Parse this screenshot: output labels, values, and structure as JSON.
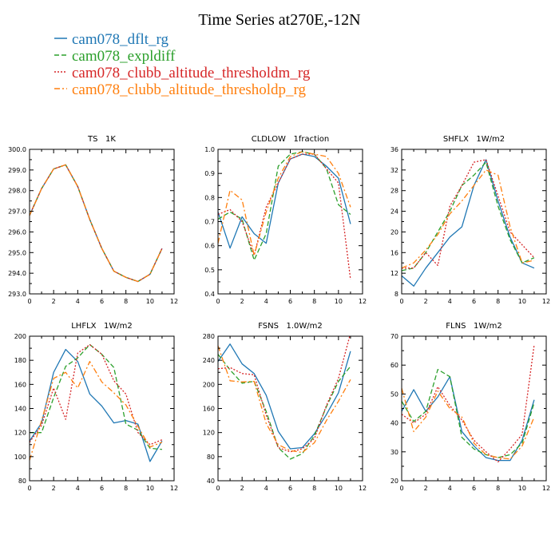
{
  "title": "Time Series at270E,-12N",
  "legend": [
    {
      "label": "cam078_dflt_rg",
      "color": "#1f77b4",
      "dash": "solid"
    },
    {
      "label": "cam078_expldiff",
      "color": "#2ca02c",
      "dash": "dash"
    },
    {
      "label": "cam078_clubb_altitude_thresholdm_rg",
      "color": "#d62728",
      "dash": "dot"
    },
    {
      "label": "cam078_clubb_altitude_thresholdp_rg",
      "color": "#ff7f0e",
      "dash": "dashdot"
    }
  ],
  "chart_data": [
    {
      "type": "line",
      "title": "TS   1K",
      "x": [
        0,
        1,
        2,
        3,
        4,
        5,
        6,
        7,
        8,
        9,
        10,
        11
      ],
      "xlim": [
        0,
        12
      ],
      "xticks": [
        0,
        2,
        4,
        6,
        8,
        10,
        12
      ],
      "ylim": [
        293.0,
        300.0
      ],
      "yticks": [
        293.0,
        294.0,
        295.0,
        296.0,
        297.0,
        298.0,
        299.0,
        300.0
      ],
      "ytick_labels": [
        "293.0",
        "294.0",
        "295.0",
        "296.0",
        "297.0",
        "298.0",
        "299.0",
        "300.0"
      ],
      "series": [
        {
          "name": "cam078_dflt_rg",
          "values": [
            296.8,
            298.1,
            299.05,
            299.25,
            298.2,
            296.6,
            295.2,
            294.1,
            293.8,
            293.6,
            293.95,
            295.2
          ]
        },
        {
          "name": "cam078_expldiff",
          "values": [
            296.8,
            298.1,
            299.05,
            299.25,
            298.2,
            296.6,
            295.2,
            294.1,
            293.8,
            293.6,
            293.95,
            295.2
          ]
        },
        {
          "name": "cam078_clubb_altitude_thresholdm_rg",
          "values": [
            296.8,
            298.1,
            299.05,
            299.25,
            298.2,
            296.6,
            295.2,
            294.1,
            293.8,
            293.6,
            293.95,
            295.2
          ]
        },
        {
          "name": "cam078_clubb_altitude_thresholdp_rg",
          "values": [
            296.8,
            298.1,
            299.05,
            299.25,
            298.2,
            296.6,
            295.2,
            294.1,
            293.8,
            293.6,
            293.95,
            295.2
          ]
        }
      ]
    },
    {
      "type": "line",
      "title": "CLDLOW   1fraction",
      "x": [
        0,
        1,
        2,
        3,
        4,
        5,
        6,
        7,
        8,
        9,
        10,
        11
      ],
      "xlim": [
        0,
        12
      ],
      "xticks": [
        0,
        2,
        4,
        6,
        8,
        10,
        12
      ],
      "ylim": [
        0.4,
        1.0
      ],
      "yticks": [
        0.4,
        0.5,
        0.6,
        0.7,
        0.8,
        0.9,
        1.0
      ],
      "ytick_labels": [
        "0.4",
        "0.5",
        "0.6",
        "0.7",
        "0.8",
        "0.9",
        "1.0"
      ],
      "series": [
        {
          "name": "cam078_dflt_rg",
          "values": [
            0.74,
            0.59,
            0.72,
            0.65,
            0.61,
            0.86,
            0.96,
            0.98,
            0.97,
            0.93,
            0.88,
            0.69
          ]
        },
        {
          "name": "cam078_expldiff",
          "values": [
            0.71,
            0.74,
            0.71,
            0.54,
            0.65,
            0.93,
            0.98,
            0.99,
            0.98,
            0.92,
            0.77,
            0.73
          ]
        },
        {
          "name": "cam078_clubb_altitude_thresholdm_rg",
          "values": [
            0.73,
            0.75,
            0.7,
            0.56,
            0.76,
            0.86,
            0.96,
            0.98,
            0.98,
            0.92,
            0.86,
            0.46
          ]
        },
        {
          "name": "cam078_clubb_altitude_thresholdp_rg",
          "values": [
            0.61,
            0.83,
            0.79,
            0.56,
            0.74,
            0.88,
            0.97,
            0.99,
            0.98,
            0.97,
            0.9,
            0.76
          ]
        }
      ]
    },
    {
      "type": "line",
      "title": "SHFLX   1W/m2",
      "x": [
        0,
        1,
        2,
        3,
        4,
        5,
        6,
        7,
        8,
        9,
        10,
        11
      ],
      "xlim": [
        0,
        12
      ],
      "xticks": [
        0,
        2,
        4,
        6,
        8,
        10,
        12
      ],
      "ylim": [
        8,
        36
      ],
      "yticks": [
        8,
        12,
        16,
        20,
        24,
        28,
        32,
        36
      ],
      "ytick_labels": [
        "8",
        "12",
        "16",
        "20",
        "24",
        "28",
        "32",
        "36"
      ],
      "series": [
        {
          "name": "cam078_dflt_rg",
          "values": [
            11.5,
            9.5,
            13,
            16,
            19,
            21,
            29,
            34,
            26,
            19,
            14,
            13
          ]
        },
        {
          "name": "cam078_expldiff",
          "values": [
            12.5,
            13,
            16,
            20,
            24,
            29,
            31,
            33.5,
            25,
            18.5,
            14,
            15
          ]
        },
        {
          "name": "cam078_clubb_altitude_thresholdm_rg",
          "values": [
            13,
            13,
            16,
            13.5,
            25,
            29,
            33.5,
            34,
            27,
            20,
            17.5,
            15
          ]
        },
        {
          "name": "cam078_clubb_altitude_thresholdp_rg",
          "values": [
            13,
            14,
            16.5,
            19.5,
            23.5,
            26,
            29,
            32,
            31,
            21,
            14,
            14.5
          ]
        }
      ]
    },
    {
      "type": "line",
      "title": "LHFLX   1W/m2",
      "x": [
        0,
        1,
        2,
        3,
        4,
        5,
        6,
        7,
        8,
        9,
        10,
        11
      ],
      "xlim": [
        0,
        12
      ],
      "xticks": [
        0,
        2,
        4,
        6,
        8,
        10,
        12
      ],
      "ylim": [
        80,
        200
      ],
      "yticks": [
        80,
        100,
        120,
        140,
        160,
        180,
        200
      ],
      "ytick_labels": [
        "80",
        "100",
        "120",
        "140",
        "160",
        "180",
        "200"
      ],
      "series": [
        {
          "name": "cam078_dflt_rg",
          "values": [
            113,
            128,
            170,
            189,
            179,
            152,
            142,
            128,
            130,
            127,
            96,
            113
          ]
        },
        {
          "name": "cam078_expldiff",
          "values": [
            120,
            120,
            149,
            175,
            182,
            193,
            185,
            174,
            127,
            122,
            107,
            106
          ]
        },
        {
          "name": "cam078_clubb_altitude_thresholdm_rg",
          "values": [
            112,
            126,
            157,
            131,
            186,
            193,
            185,
            163,
            152,
            120,
            110,
            114
          ]
        },
        {
          "name": "cam078_clubb_altitude_thresholdp_rg",
          "values": [
            97,
            130,
            165,
            170,
            157,
            179,
            162,
            153,
            143,
            125,
            108,
            112
          ]
        }
      ]
    },
    {
      "type": "line",
      "title": "FSNS   1.0W/m2",
      "x": [
        0,
        1,
        2,
        3,
        4,
        5,
        6,
        7,
        8,
        9,
        10,
        11
      ],
      "xlim": [
        0,
        12
      ],
      "xticks": [
        0,
        2,
        4,
        6,
        8,
        10,
        12
      ],
      "ylim": [
        40,
        280
      ],
      "yticks": [
        40,
        80,
        120,
        160,
        200,
        240,
        280
      ],
      "ytick_labels": [
        "40",
        "80",
        "120",
        "160",
        "200",
        "240",
        "280"
      ],
      "series": [
        {
          "name": "cam078_dflt_rg",
          "values": [
            238,
            267,
            234,
            218,
            182,
            122,
            93,
            95,
            118,
            150,
            186,
            255
          ]
        },
        {
          "name": "cam078_expldiff",
          "values": [
            250,
            224,
            202,
            205,
            155,
            95,
            76,
            85,
            115,
            163,
            205,
            230
          ]
        },
        {
          "name": "cam078_clubb_altitude_thresholdm_rg",
          "values": [
            226,
            228,
            218,
            216,
            149,
            95,
            88,
            93,
            110,
            165,
            210,
            285
          ]
        },
        {
          "name": "cam078_clubb_altitude_thresholdp_rg",
          "values": [
            264,
            206,
            204,
            205,
            135,
            100,
            90,
            87,
            103,
            140,
            172,
            208
          ]
        }
      ]
    },
    {
      "type": "line",
      "title": "FLNS   1W/m2",
      "x": [
        0,
        1,
        2,
        3,
        4,
        5,
        6,
        7,
        8,
        9,
        10,
        11
      ],
      "xlim": [
        0,
        12
      ],
      "xticks": [
        0,
        2,
        4,
        6,
        8,
        10,
        12
      ],
      "ylim": [
        20,
        70
      ],
      "yticks": [
        20,
        30,
        40,
        50,
        60,
        70
      ],
      "ytick_labels": [
        "20",
        "30",
        "40",
        "50",
        "60",
        "70"
      ],
      "series": [
        {
          "name": "cam078_dflt_rg",
          "values": [
            44,
            51.5,
            44,
            49,
            56,
            37,
            32,
            28,
            27,
            27,
            34,
            48
          ]
        },
        {
          "name": "cam078_expldiff",
          "values": [
            47.5,
            40.5,
            44,
            58.5,
            56,
            35,
            31,
            29,
            28,
            29,
            33,
            47
          ]
        },
        {
          "name": "cam078_clubb_altitude_thresholdm_rg",
          "values": [
            43,
            40,
            43,
            52.5,
            46,
            41,
            34,
            30,
            26.5,
            31,
            36,
            67
          ]
        },
        {
          "name": "cam078_clubb_altitude_thresholdp_rg",
          "values": [
            52,
            37,
            42,
            51,
            45,
            42,
            33,
            29,
            28,
            27.5,
            32,
            42
          ]
        }
      ]
    }
  ]
}
